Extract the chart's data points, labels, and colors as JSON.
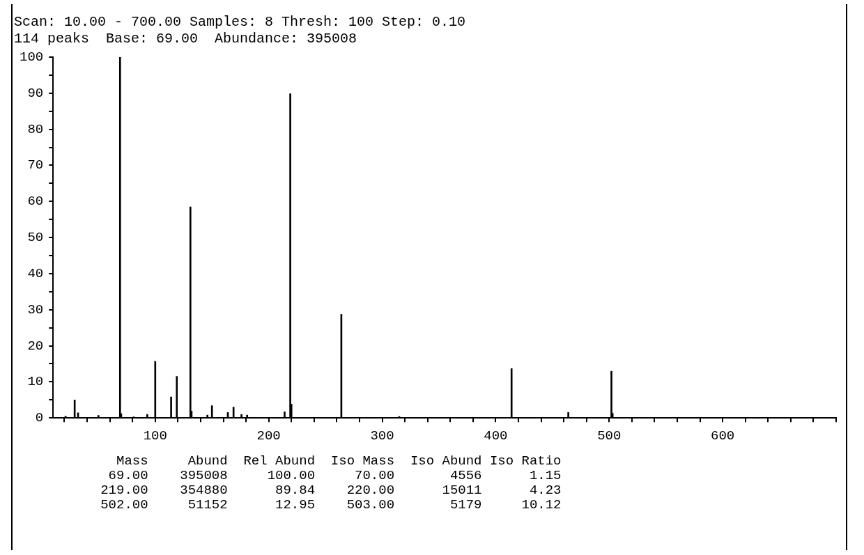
{
  "chart_data": {
    "type": "bar",
    "title": "Scan: 10.00 - 700.00 Samples: 8 Thresh: 100 Step: 0.10",
    "subtitle": "114 peaks  Base: 69.00  Abundance: 395008",
    "x": [
      21,
      29,
      32,
      50,
      69,
      70,
      81,
      93,
      100,
      114,
      119,
      131,
      132,
      146,
      150,
      164,
      169,
      176,
      181,
      214,
      219,
      220,
      264,
      315,
      414,
      464,
      502,
      503
    ],
    "values": [
      0.5,
      5,
      1.4,
      0.7,
      100,
      1.2,
      0.3,
      1,
      15.7,
      5.8,
      11.5,
      58.5,
      1.9,
      0.8,
      3.4,
      1.5,
      3,
      1,
      0.8,
      1.7,
      89.84,
      3.8,
      28.7,
      0.4,
      13.7,
      1.5,
      12.95,
      1.3
    ],
    "color": "#000000",
    "xlim": [
      10,
      700
    ],
    "xticks": [
      {
        "value": 20,
        "label": null
      },
      {
        "value": 40,
        "label": null
      },
      {
        "value": 60,
        "label": null
      },
      {
        "value": 80,
        "label": null
      },
      100,
      {
        "value": 120,
        "label": null
      },
      {
        "value": 140,
        "label": null
      },
      {
        "value": 160,
        "label": null
      },
      {
        "value": 180,
        "label": null
      },
      200,
      {
        "value": 220,
        "label": null
      },
      {
        "value": 240,
        "label": null
      },
      {
        "value": 260,
        "label": null
      },
      {
        "value": 280,
        "label": null
      },
      300,
      {
        "value": 320,
        "label": null
      },
      {
        "value": 340,
        "label": null
      },
      {
        "value": 360,
        "label": null
      },
      {
        "value": 380,
        "label": null
      },
      400,
      {
        "value": 420,
        "label": null
      },
      {
        "value": 440,
        "label": null
      },
      {
        "value": 460,
        "label": null
      },
      {
        "value": 480,
        "label": null
      },
      500,
      {
        "value": 520,
        "label": null
      },
      {
        "value": 540,
        "label": null
      },
      {
        "value": 560,
        "label": null
      },
      {
        "value": 580,
        "label": null
      },
      600,
      {
        "value": 620,
        "label": null
      },
      {
        "value": 640,
        "label": null
      },
      {
        "value": 660,
        "label": null
      },
      {
        "value": 680,
        "label": null
      },
      {
        "value": 700,
        "label": null
      }
    ],
    "ylim": [
      0,
      100
    ],
    "yticks": [
      0,
      {
        "value": 5,
        "label": null
      },
      10,
      {
        "value": 15,
        "label": null
      },
      20,
      {
        "value": 25,
        "label": null
      },
      30,
      {
        "value": 35,
        "label": null
      },
      40,
      {
        "value": 45,
        "label": null
      },
      50,
      {
        "value": 55,
        "label": null
      },
      60,
      {
        "value": 65,
        "label": null
      },
      70,
      {
        "value": 75,
        "label": null
      },
      80,
      {
        "value": 85,
        "label": null
      },
      90,
      {
        "value": 95,
        "label": null
      },
      100
    ],
    "annotations": [
      "     Mass     Abund  Rel Abund  Iso Mass  Iso Abund Iso Ratio",
      "    69.00    395008     100.00     70.00       4556      1.15",
      "   219.00    354880      89.84    220.00      15011      4.23",
      "   502.00     51152      12.95    503.00       5179     10.12"
    ]
  }
}
